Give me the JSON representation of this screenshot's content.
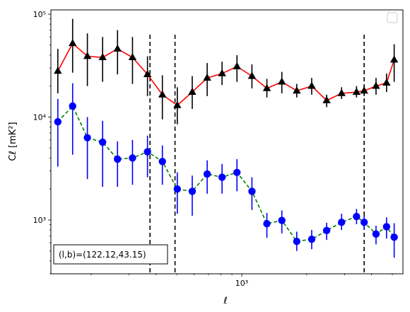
{
  "chart_data": {
    "type": "line",
    "xlabel": "ℓ",
    "ylabel": "Cℓ  [mK²]",
    "xscale": "log",
    "yscale": "log",
    "xlim": [
      130,
      5600
    ],
    "ylim": [
      300,
      110000
    ],
    "x_ticks": [
      {
        "value": 1000,
        "label": "10³"
      }
    ],
    "y_ticks": [
      {
        "value": 1000,
        "label": "10³"
      },
      {
        "value": 10000,
        "label": "10⁴"
      },
      {
        "value": 100000,
        "label": "10⁵"
      }
    ],
    "grid": false,
    "legend": "top-right (empty)",
    "annotation": "(l,b)=(122.12,43.15)",
    "vlines": [
      375,
      490,
      3700
    ],
    "series": [
      {
        "marker": "triangle",
        "line_color": "#ff0000",
        "marker_color": "#000000",
        "line_style": "solid",
        "x": [
          140,
          164,
          192,
          226,
          265,
          311,
          365,
          428,
          502,
          589,
          691,
          810,
          950,
          1115,
          1308,
          1535,
          1800,
          2112,
          2478,
          2907,
          3410,
          3700,
          4200,
          4700,
          5100
        ],
        "y": [
          28000,
          52000,
          39000,
          38000,
          46000,
          38000,
          26000,
          16500,
          13000,
          17500,
          24000,
          26500,
          31000,
          25000,
          19000,
          22000,
          18000,
          20000,
          14500,
          17000,
          17500,
          18000,
          20000,
          21500,
          36000
        ],
        "err_low": [
          11000,
          25000,
          19000,
          16000,
          20000,
          17000,
          10000,
          7000,
          4500,
          5500,
          8000,
          6000,
          9000,
          6000,
          3500,
          5000,
          2500,
          3500,
          2000,
          2000,
          2000,
          2000,
          3500,
          4000,
          14000
        ],
        "err_high": [
          18000,
          38000,
          26000,
          22000,
          24000,
          22000,
          13000,
          9000,
          6500,
          7500,
          9500,
          8000,
          9000,
          7500,
          4500,
          5500,
          3000,
          4000,
          2000,
          2500,
          2500,
          2500,
          4000,
          5000,
          15000
        ]
      },
      {
        "marker": "circle",
        "line_color": "#008000",
        "marker_color": "#0000ff",
        "line_style": "dashed",
        "x": [
          140,
          164,
          192,
          226,
          265,
          311,
          365,
          428,
          502,
          589,
          691,
          810,
          950,
          1115,
          1308,
          1535,
          1800,
          2112,
          2478,
          2907,
          3410,
          3700,
          4200,
          4700,
          5100
        ],
        "y": [
          9000,
          12800,
          6300,
          5700,
          3900,
          4000,
          4600,
          3700,
          2000,
          1900,
          2800,
          2600,
          2900,
          1900,
          920,
          990,
          620,
          650,
          790,
          950,
          1080,
          950,
          730,
          860,
          680
        ],
        "err_low": [
          5700,
          8500,
          3800,
          3600,
          1800,
          1800,
          2000,
          1500,
          850,
          800,
          1000,
          800,
          1000,
          650,
          250,
          250,
          120,
          130,
          150,
          150,
          170,
          150,
          150,
          200,
          250
        ],
        "err_high": [
          6000,
          8500,
          3700,
          3500,
          1900,
          2000,
          2000,
          1600,
          900,
          800,
          1000,
          900,
          1000,
          700,
          250,
          250,
          150,
          150,
          150,
          200,
          200,
          150,
          150,
          200,
          250
        ]
      }
    ]
  }
}
